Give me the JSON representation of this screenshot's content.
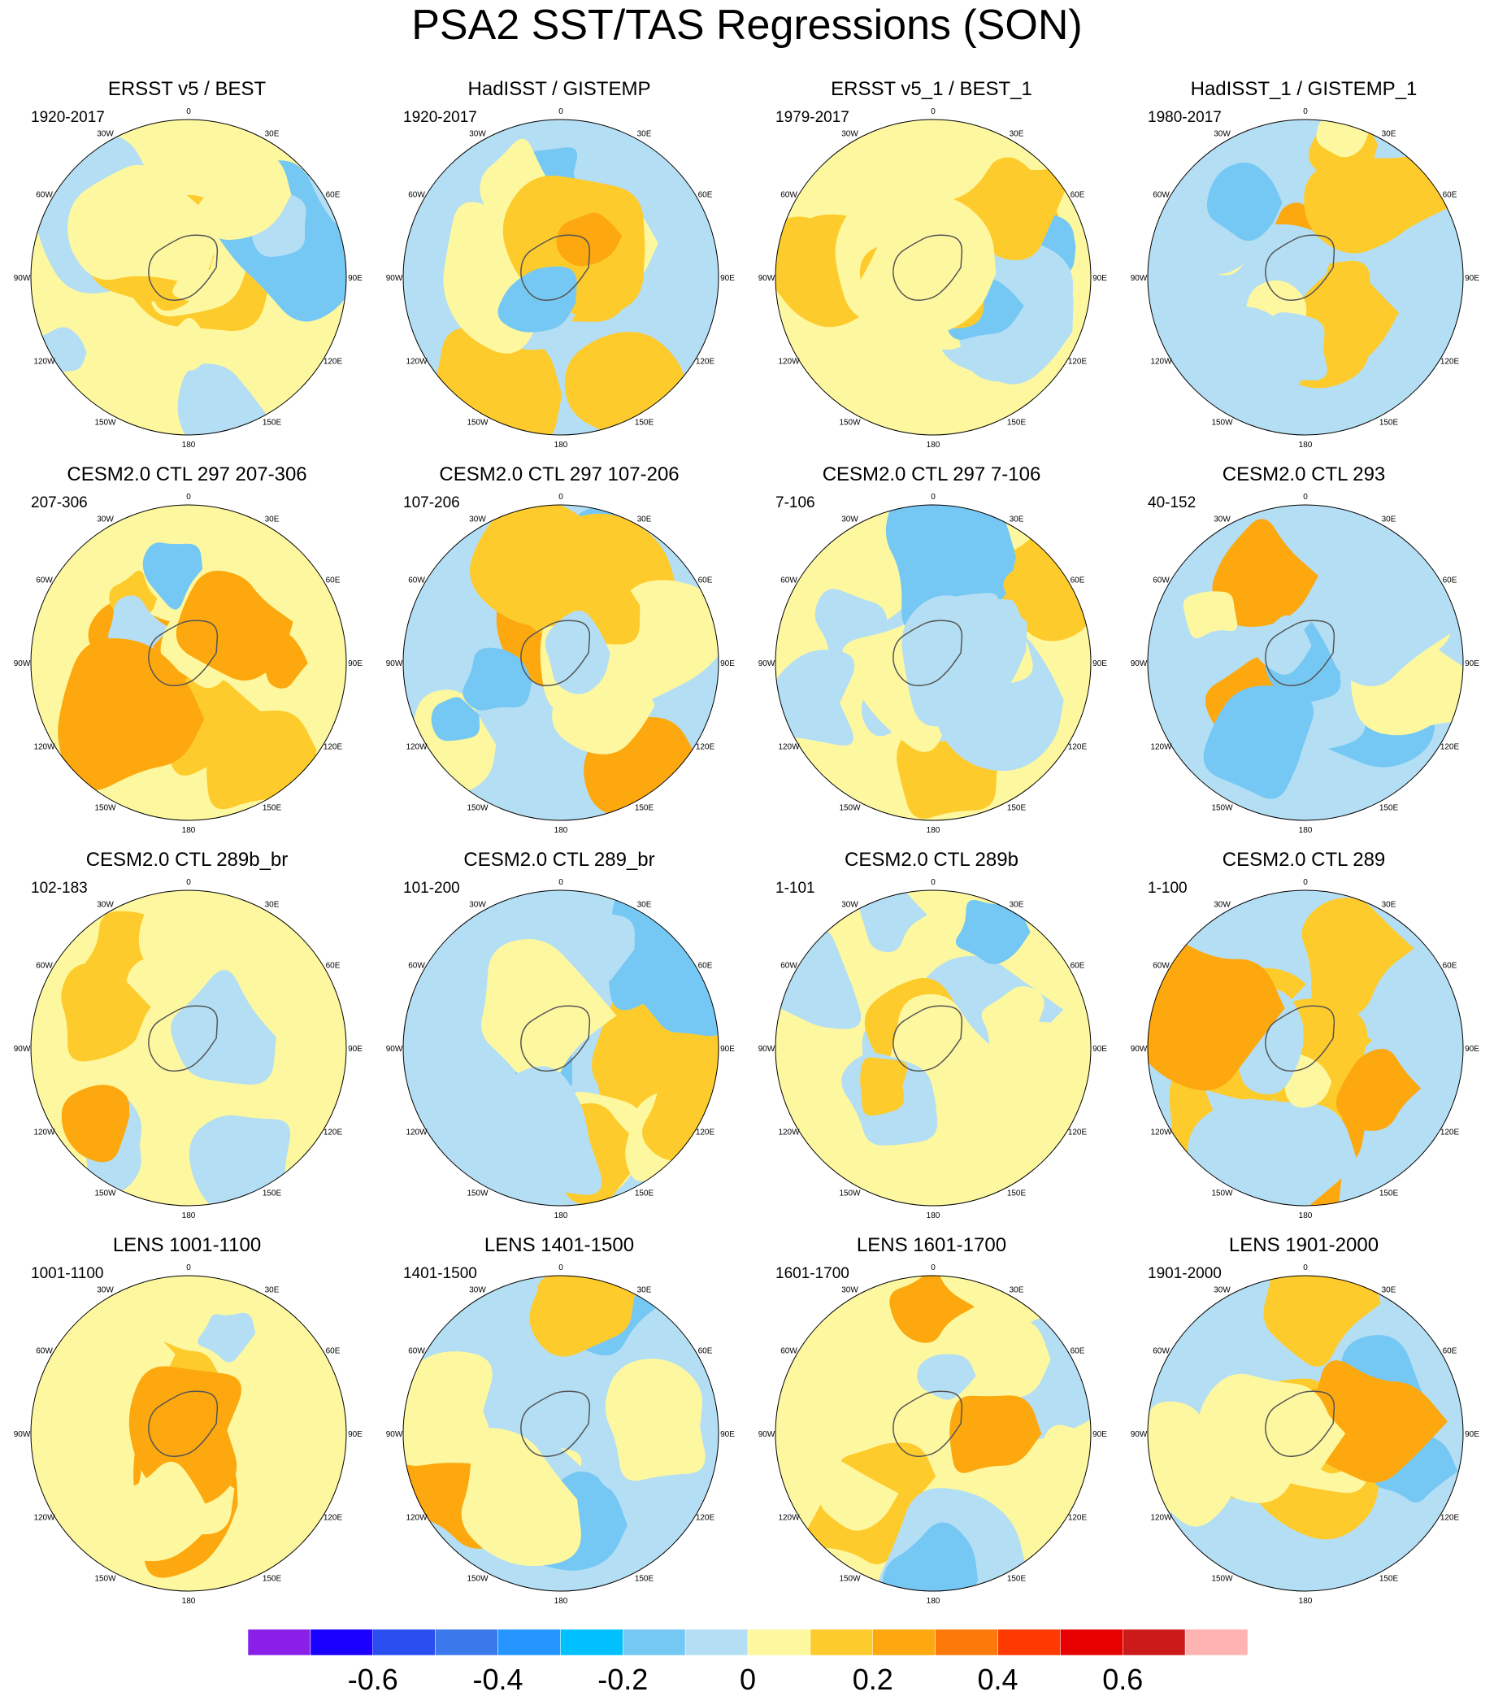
{
  "title": "PSA2 SST/TAS Regressions (SON)",
  "longitude_labels": [
    "0",
    "30E",
    "60E",
    "90E",
    "120E",
    "150E",
    "180",
    "150W",
    "120W",
    "90W",
    "60W",
    "30W"
  ],
  "panels": [
    {
      "title": "ERSST v5 / BEST",
      "years": "1920-2017"
    },
    {
      "title": "HadISST / GISTEMP",
      "years": "1920-2017"
    },
    {
      "title": "ERSST v5_1 / BEST_1",
      "years": "1979-2017"
    },
    {
      "title": "HadISST_1 / GISTEMP_1",
      "years": "1980-2017"
    },
    {
      "title": "CESM2.0 CTL 297 207-306",
      "years": "207-306"
    },
    {
      "title": "CESM2.0 CTL 297 107-206",
      "years": "107-206"
    },
    {
      "title": "CESM2.0 CTL 297 7-106",
      "years": "7-106"
    },
    {
      "title": "CESM2.0 CTL 293",
      "years": "40-152"
    },
    {
      "title": "CESM2.0 CTL 289b_br",
      "years": "102-183"
    },
    {
      "title": "CESM2.0 CTL 289_br",
      "years": "101-200"
    },
    {
      "title": "CESM2.0 CTL 289b",
      "years": "1-101"
    },
    {
      "title": "CESM2.0 CTL 289",
      "years": "1-100"
    },
    {
      "title": "LENS 1001-1100",
      "years": "1001-1100"
    },
    {
      "title": "LENS 1401-1500",
      "years": "1401-1500"
    },
    {
      "title": "LENS 1601-1700",
      "years": "1601-1700"
    },
    {
      "title": "LENS 1901-2000",
      "years": "1901-2000"
    }
  ],
  "colorbar": {
    "colors": [
      "#8a20e8",
      "#1a00ff",
      "#2a4ff0",
      "#3a78ec",
      "#2596ff",
      "#00c0ff",
      "#76c8f4",
      "#b4def3",
      "#fdf8a0",
      "#fecb2c",
      "#fca80e",
      "#fd7a0a",
      "#fe3a00",
      "#e60000",
      "#cc1a1a",
      "#ffb3b3"
    ],
    "tick_labels": [
      "-0.6",
      "-0.4",
      "-0.2",
      "0",
      "0.2",
      "0.4",
      "0.6"
    ],
    "tick_values": [
      -0.6,
      -0.4,
      -0.2,
      0,
      0.2,
      0.4,
      0.6
    ]
  }
}
